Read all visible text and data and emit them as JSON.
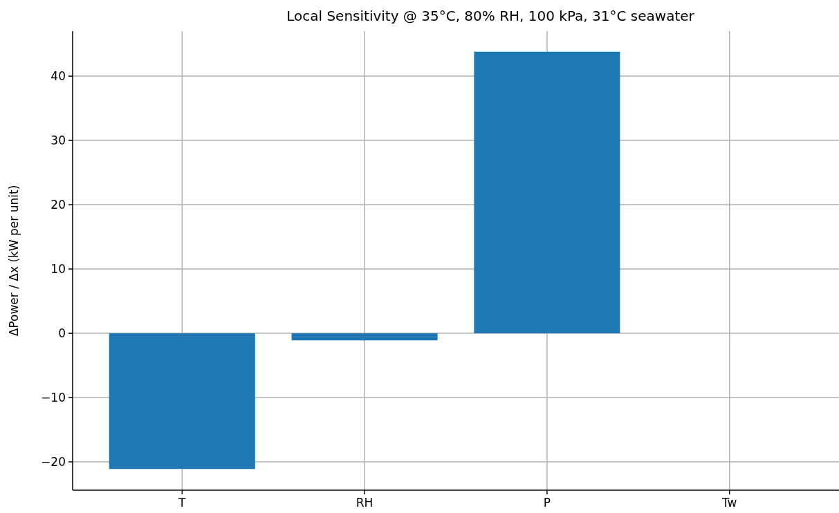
{
  "chart_data": {
    "type": "bar",
    "title": "Local Sensitivity @ 35°C, 80% RH, 100 kPa, 31°C seawater",
    "ylabel": "ΔPower / Δx (kW per unit)",
    "categories": [
      "T",
      "RH",
      "P",
      "Tw"
    ],
    "values": [
      -21.1,
      -1.1,
      43.8,
      0
    ],
    "color": "#1f77b4",
    "ylim": [
      -24.4,
      47.0
    ],
    "yticks": [
      -20,
      -10,
      0,
      10,
      20,
      30,
      40
    ],
    "grid": true
  }
}
